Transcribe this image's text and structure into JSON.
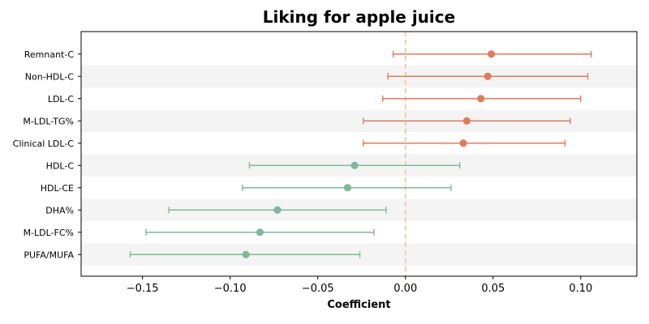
{
  "chart_data": {
    "type": "scatter",
    "subtype": "forest-plot",
    "title": "Liking for apple juice",
    "xlabel": "Coefficient",
    "ylabel": "",
    "xlim": [
      -0.185,
      0.132
    ],
    "x_ticks": [
      -0.15,
      -0.1,
      -0.05,
      0.0,
      0.05,
      0.1
    ],
    "x_tick_labels": [
      "−0.15",
      "−0.10",
      "−0.05",
      "0.00",
      "0.05",
      "0.10"
    ],
    "reference_line": 0.0,
    "categories": [
      "Remnant-C",
      "Non-HDL-C",
      "LDL-C",
      "M-LDL-TG%",
      "Clinical LDL-C",
      "HDL-C",
      "HDL-CE",
      "DHA%",
      "M-LDL-FC%",
      "PUFA/MUFA"
    ],
    "estimates": [
      0.049,
      0.047,
      0.043,
      0.035,
      0.033,
      -0.029,
      -0.033,
      -0.073,
      -0.083,
      -0.091
    ],
    "ci_lower": [
      -0.007,
      -0.01,
      -0.013,
      -0.024,
      -0.024,
      -0.089,
      -0.093,
      -0.135,
      -0.148,
      -0.157
    ],
    "ci_upper": [
      0.106,
      0.104,
      0.1,
      0.094,
      0.091,
      0.031,
      0.026,
      -0.011,
      -0.018,
      -0.026
    ],
    "colors": {
      "positive": "#e07b5f",
      "negative": "#7fb89a",
      "reference": "#f3c77e",
      "band": "#f4f4f4"
    },
    "grid": false,
    "alternating_row_bands": true
  }
}
